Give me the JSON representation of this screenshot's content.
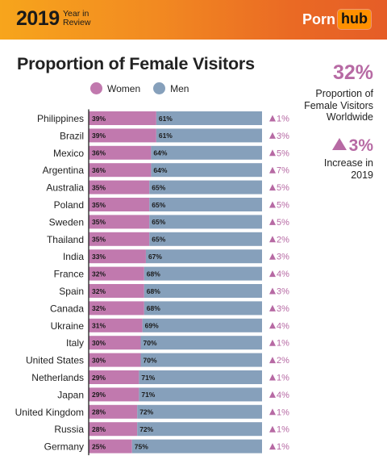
{
  "header": {
    "year": "2019",
    "year_in_review": "Year in Review",
    "logo_part1": "Porn",
    "logo_part2": "hub"
  },
  "side_stats": {
    "proportion_value": "32%",
    "proportion_label": "Proportion of Female Visitors Worldwide",
    "increase_value": "3%",
    "increase_label": "Increase in 2019"
  },
  "colors": {
    "women": "#c179ae",
    "men": "#86a0bb",
    "accent": "#b76aa4",
    "header_orange": "#f28a21"
  },
  "chart_data": {
    "type": "bar",
    "stacked": true,
    "orientation": "horizontal",
    "title": "Proportion of Female Visitors",
    "legend": [
      "Women",
      "Men"
    ],
    "legend_position": "top",
    "categories": [
      "Philippines",
      "Brazil",
      "Mexico",
      "Argentina",
      "Australia",
      "Poland",
      "Sweden",
      "Thailand",
      "India",
      "France",
      "Spain",
      "Canada",
      "Ukraine",
      "Italy",
      "United States",
      "Netherlands",
      "Japan",
      "United Kingdom",
      "Russia",
      "Germany"
    ],
    "series": [
      {
        "name": "Women",
        "values": [
          39,
          39,
          36,
          36,
          35,
          35,
          35,
          35,
          33,
          32,
          32,
          32,
          31,
          30,
          30,
          29,
          29,
          28,
          28,
          25
        ]
      },
      {
        "name": "Men",
        "values": [
          61,
          61,
          64,
          64,
          65,
          65,
          65,
          65,
          67,
          68,
          68,
          68,
          69,
          70,
          70,
          71,
          71,
          72,
          72,
          75
        ]
      }
    ],
    "value_labels_women": [
      "39%",
      "39%",
      "36%",
      "36%",
      "35%",
      "35%",
      "35%",
      "35%",
      "33%",
      "32%",
      "32%",
      "32%",
      "31%",
      "30%",
      "30%",
      "29%",
      "29%",
      "28%",
      "28%",
      "25%"
    ],
    "value_labels_men": [
      "61%",
      "61%",
      "64%",
      "64%",
      "65%",
      "65%",
      "65%",
      "65%",
      "67%",
      "68%",
      "68%",
      "68%",
      "69%",
      "70%",
      "70%",
      "71%",
      "71%",
      "72%",
      "72%",
      "75%"
    ],
    "change_labels": [
      "1%",
      "3%",
      "5%",
      "7%",
      "5%",
      "5%",
      "5%",
      "2%",
      "3%",
      "4%",
      "3%",
      "3%",
      "4%",
      "1%",
      "2%",
      "1%",
      "4%",
      "1%",
      "1%",
      "1%"
    ],
    "xlim": [
      0,
      100
    ]
  }
}
